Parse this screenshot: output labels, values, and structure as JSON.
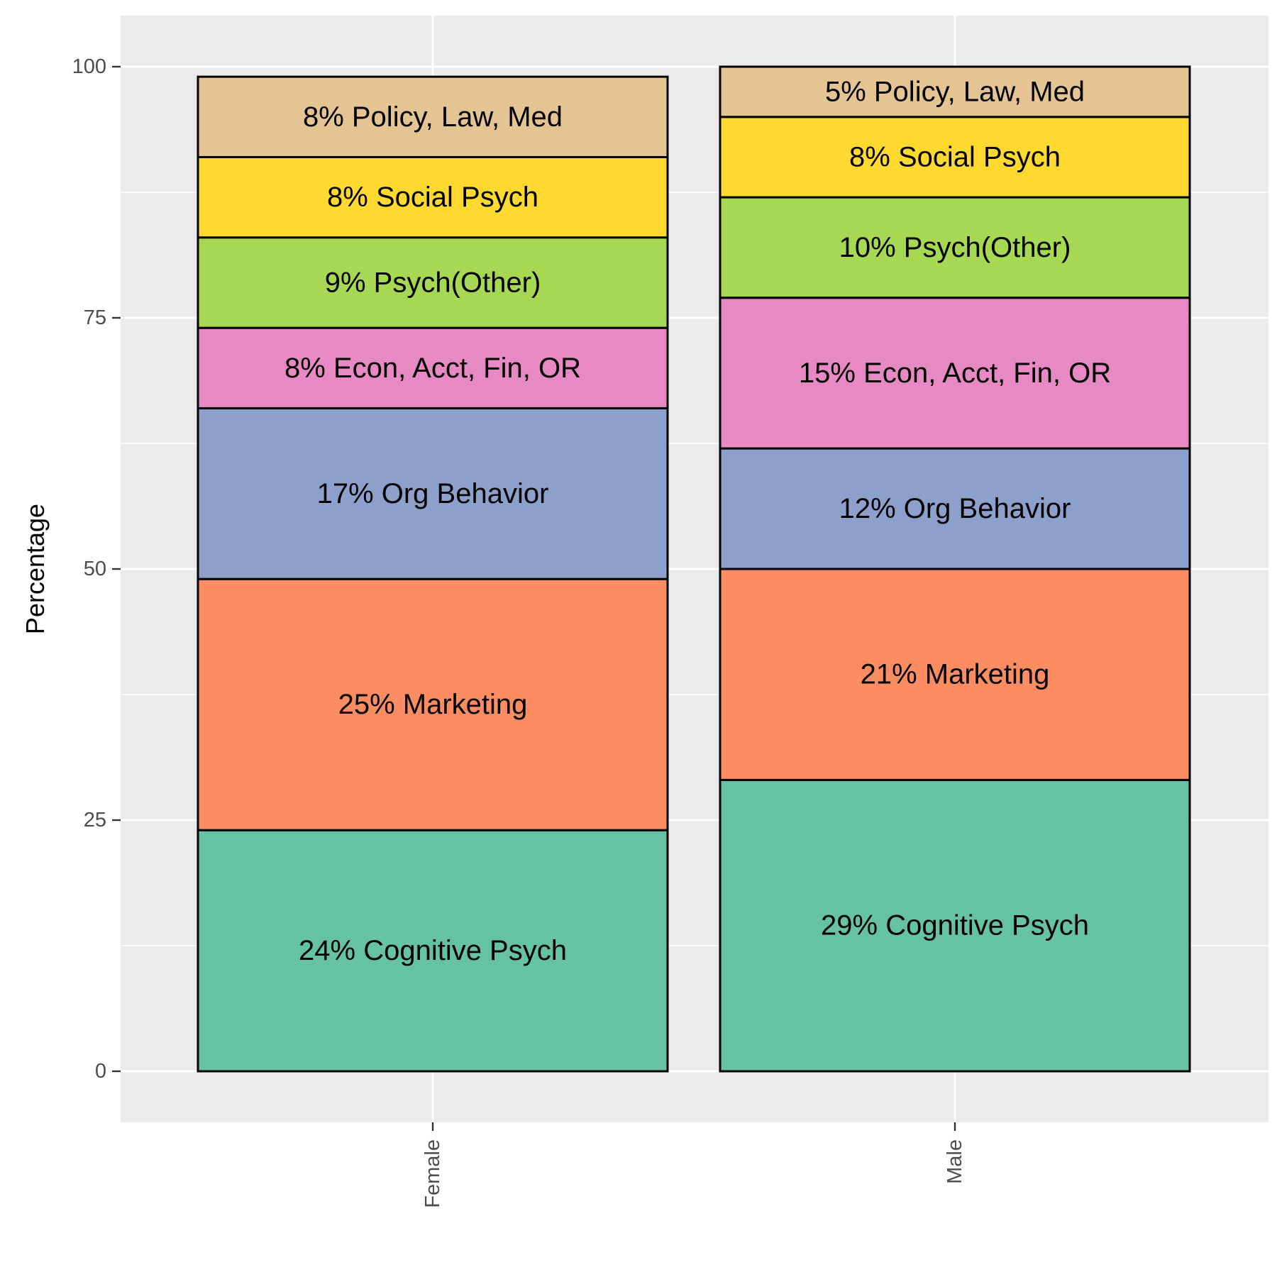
{
  "chart_data": {
    "type": "bar",
    "stacked": true,
    "title": "",
    "xlabel": "",
    "ylabel": "Percentage",
    "ylim": [
      -5,
      105
    ],
    "yticks": [
      0,
      25,
      50,
      75,
      100
    ],
    "grid": true,
    "legend": "none",
    "categories": [
      "Female",
      "Male"
    ],
    "series": [
      {
        "color": "#66c2a5",
        "values": [
          24,
          29
        ],
        "labels": [
          "24% Cognitive Psych",
          "29% Cognitive Psych"
        ]
      },
      {
        "color": "#fc8d62",
        "values": [
          25,
          21
        ],
        "labels": [
          "25% Marketing",
          "21% Marketing"
        ]
      },
      {
        "color": "#8da0cb",
        "values": [
          17,
          12
        ],
        "labels": [
          "17% Org Behavior",
          "12% Org Behavior"
        ]
      },
      {
        "color": "#e78ac3",
        "values": [
          8,
          15
        ],
        "labels": [
          "8% Econ, Acct, Fin, OR",
          "15% Econ, Acct, Fin, OR"
        ]
      },
      {
        "color": "#a6d854",
        "values": [
          9,
          10
        ],
        "labels": [
          "9% Psych(Other)",
          "10% Psych(Other)"
        ]
      },
      {
        "color": "#ffd92f",
        "values": [
          8,
          8
        ],
        "labels": [
          "8% Social Psych",
          "8% Social Psych"
        ]
      },
      {
        "color": "#e5c494",
        "values": [
          8,
          5
        ],
        "labels": [
          "8% Policy, Law, Med",
          "5% Policy, Law, Med"
        ]
      }
    ]
  }
}
